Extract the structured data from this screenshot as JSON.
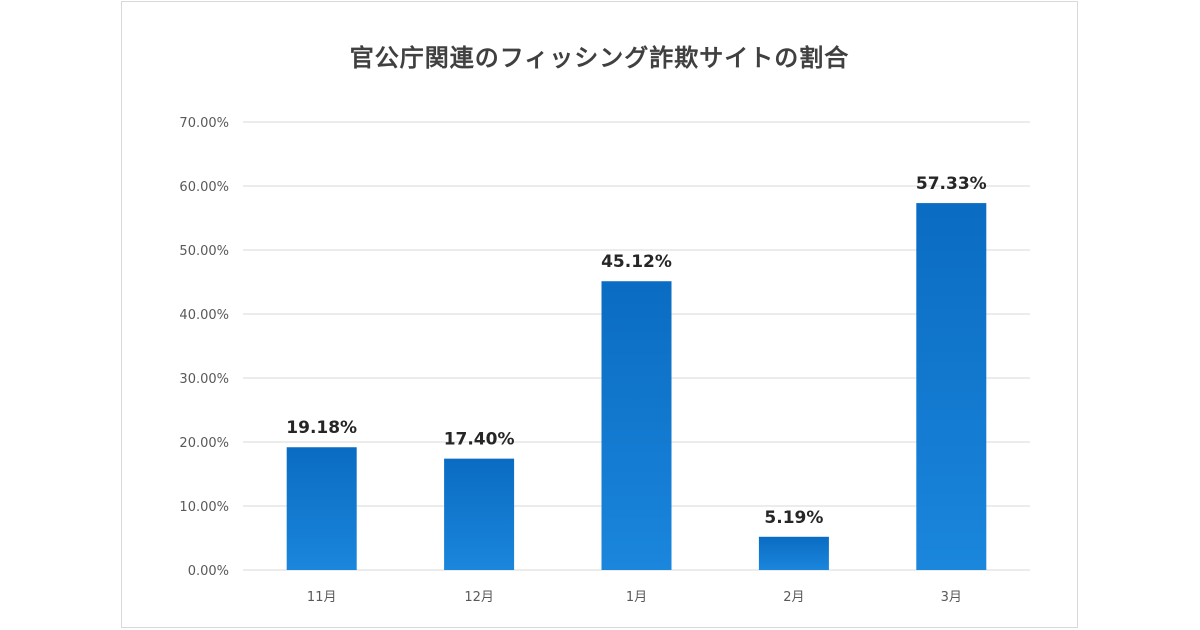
{
  "chart_data": {
    "type": "bar",
    "title": "官公庁関連のフィッシング詐欺サイトの割合",
    "categories": [
      "11月",
      "12月",
      "1月",
      "2月",
      "3月"
    ],
    "values": [
      19.18,
      17.4,
      45.12,
      5.19,
      57.33
    ],
    "data_labels": [
      "19.18%",
      "17.40%",
      "45.12%",
      "5.19%",
      "57.33%"
    ],
    "ylim": [
      0,
      70
    ],
    "yticks": [
      "0.00%",
      "10.00%",
      "20.00%",
      "30.00%",
      "40.00%",
      "50.00%",
      "60.00%",
      "70.00%"
    ],
    "xlabel": "",
    "ylabel": "",
    "grid": true,
    "legend": "none",
    "colors": {
      "bar_top": "#0a6cc2",
      "bar_bottom": "#1a86dc",
      "grid": "#d9d9d9"
    }
  }
}
